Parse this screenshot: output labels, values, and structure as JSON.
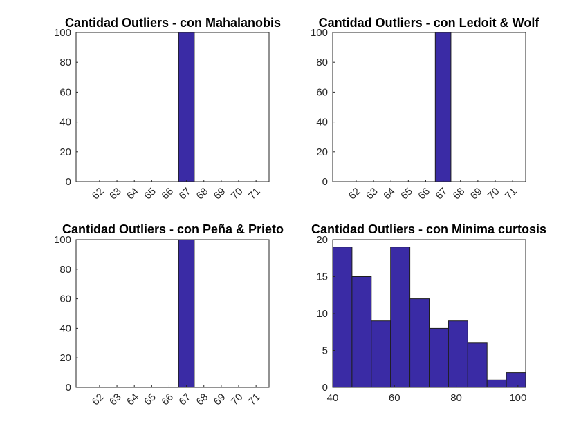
{
  "colors": {
    "bar_fill": "#3a2ba5",
    "bar_stroke": "#1e1e1e",
    "axis": "#262626",
    "background": "#ffffff"
  },
  "chart_data": [
    {
      "type": "bar",
      "title": "Cantidad Outliers - con Mahalanobis",
      "xlabel": "",
      "ylabel": "",
      "categories": [
        "62",
        "63",
        "64",
        "65",
        "66",
        "67",
        "68",
        "69",
        "70",
        "71"
      ],
      "values": [
        0,
        0,
        0,
        0,
        0,
        100,
        0,
        0,
        0,
        0
      ],
      "ylim": [
        0,
        100
      ],
      "yticks": [
        0,
        20,
        40,
        60,
        80,
        100
      ],
      "grid": false,
      "xtick_rotation": -45
    },
    {
      "type": "bar",
      "title": "Cantidad Outliers - con Ledoit & Wolf",
      "xlabel": "",
      "ylabel": "",
      "categories": [
        "62",
        "63",
        "64",
        "65",
        "66",
        "67",
        "68",
        "69",
        "70",
        "71"
      ],
      "values": [
        0,
        0,
        0,
        0,
        0,
        100,
        0,
        0,
        0,
        0
      ],
      "ylim": [
        0,
        100
      ],
      "yticks": [
        0,
        20,
        40,
        60,
        80,
        100
      ],
      "grid": false,
      "xtick_rotation": -45
    },
    {
      "type": "bar",
      "title": "Cantidad Outliers - con Peña & Prieto",
      "xlabel": "",
      "ylabel": "",
      "categories": [
        "62",
        "63",
        "64",
        "65",
        "66",
        "67",
        "68",
        "69",
        "70",
        "71"
      ],
      "values": [
        0,
        0,
        0,
        0,
        0,
        100,
        0,
        0,
        0,
        0
      ],
      "ylim": [
        0,
        100
      ],
      "yticks": [
        0,
        20,
        40,
        60,
        80,
        100
      ],
      "grid": false,
      "xtick_rotation": -45
    },
    {
      "type": "histogram",
      "title": "Cantidad Outliers - con Minima curtosis",
      "xlabel": "",
      "ylabel": "",
      "bin_edges": [
        40,
        46.25,
        52.5,
        58.75,
        65,
        71.25,
        77.5,
        83.75,
        90,
        96.25,
        102.5
      ],
      "values": [
        19,
        15,
        9,
        19,
        12,
        8,
        9,
        6,
        1,
        2
      ],
      "xlim": [
        40,
        102.5
      ],
      "ylim": [
        0,
        20
      ],
      "xticks": [
        40,
        60,
        80,
        100
      ],
      "yticks": [
        0,
        5,
        10,
        15,
        20
      ],
      "grid": false
    }
  ]
}
